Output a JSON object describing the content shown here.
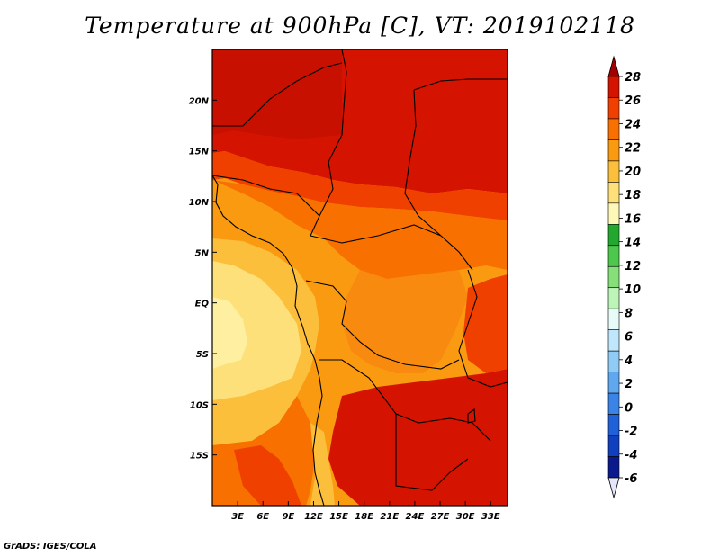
{
  "title": "Temperature at 900hPa [C], VT: 2019102118",
  "credit": "GrADS: IGES/COLA",
  "map": {
    "lon_ticks": [
      "3E",
      "6E",
      "9E",
      "12E",
      "15E",
      "18E",
      "21E",
      "24E",
      "27E",
      "30E",
      "33E"
    ],
    "lat_ticks": [
      "20N",
      "15N",
      "10N",
      "5N",
      "EQ",
      "5S",
      "10S",
      "15S"
    ],
    "lon_range": [
      0,
      35
    ],
    "lat_range": [
      -20,
      25
    ]
  },
  "colorbar": {
    "levels": [
      "28",
      "26",
      "24",
      "22",
      "20",
      "18",
      "16",
      "14",
      "12",
      "10",
      "8",
      "6",
      "4",
      "2",
      "0",
      "-2",
      "-4",
      "-6"
    ],
    "colors": [
      "#a50000",
      "#d41400",
      "#f04000",
      "#f77000",
      "#fa9a10",
      "#fbbf3c",
      "#fde07a",
      "#fef8b8",
      "#22a82e",
      "#4cc84c",
      "#86e07a",
      "#bdf5b8",
      "#e8fbf8",
      "#bfe6fb",
      "#90cbf5",
      "#5fa8ef",
      "#3a84e8",
      "#2060d8",
      "#1040c0",
      "#0a1a8c",
      "#c8c8fa"
    ],
    "top_arrow_color": "#a50000",
    "bottom_arrow_color": "#e6e6fa"
  }
}
